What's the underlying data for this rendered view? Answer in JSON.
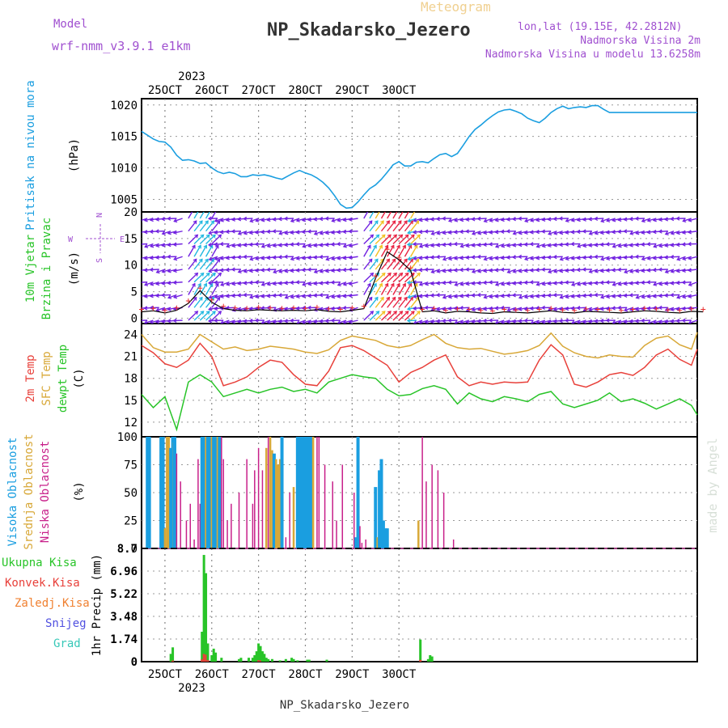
{
  "header": {
    "model_label": "Model",
    "model_name": "wrf-nmm_v3.9.1 e1km",
    "chart_kind": "Meteogram",
    "station": "NP_Skadarsko_Jezero",
    "lonlat": "lon,lat (19.15E, 42.2812N)",
    "elevation": "Nadmorska Visina 2m",
    "model_elevation": "Nadmorska Visina u modelu 13.6258m",
    "watermark": "made by Angel",
    "footer": "NP_Skadarsko_Jezero"
  },
  "colors": {
    "pressure": "#1a9ee0",
    "temp2m": "#e8403a",
    "sfc_temp": "#d8a838",
    "dewpt": "#28c428",
    "high_cloud": "#1a9ee0",
    "mid_cloud": "#d8a838",
    "low_cloud": "#c8208a",
    "total_precip": "#28c428",
    "convective": "#e8403a",
    "frozen": "#f08030",
    "snow": "#5050e0",
    "graupel": "#38c8b8",
    "wind_speed": "#000000",
    "model_purple": "#a050d0"
  },
  "chart_data": [
    {
      "type": "line",
      "panel": "pressure",
      "ylabel": "Pritisak na nivou mora",
      "unit": "(hPa)",
      "ylim": [
        1003,
        1021
      ],
      "yticks": [
        "1005",
        "1010",
        "1015",
        "1020"
      ],
      "x_hours": [
        0,
        3,
        6,
        9,
        12,
        15,
        18,
        21,
        24,
        27,
        30,
        33,
        36,
        39,
        42,
        45,
        48,
        51,
        54,
        57,
        60,
        63,
        66,
        69,
        72,
        75,
        78,
        81,
        84,
        87,
        90,
        93,
        96,
        99,
        102,
        105,
        108,
        111,
        114,
        117,
        120,
        123,
        126,
        129,
        132,
        135,
        138,
        141,
        144,
        147,
        150,
        153,
        156,
        159,
        162,
        165,
        168,
        171,
        174,
        177,
        180,
        183,
        186,
        189,
        192,
        195,
        198,
        201,
        204,
        207,
        210,
        213,
        216,
        219,
        222,
        225,
        228,
        231,
        234,
        237,
        240,
        243,
        246,
        249,
        252,
        255,
        258,
        261,
        264,
        267,
        270,
        273,
        276,
        279,
        282,
        285
      ],
      "values": [
        1015.8,
        1015.2,
        1014.6,
        1014.2,
        1014.1,
        1013.3,
        1012.0,
        1011.2,
        1011.3,
        1011.1,
        1010.7,
        1010.8,
        1010.0,
        1009.4,
        1009.1,
        1009.3,
        1009.1,
        1008.6,
        1008.6,
        1008.9,
        1008.8,
        1008.9,
        1008.7,
        1008.4,
        1008.2,
        1008.7,
        1009.2,
        1009.6,
        1009.2,
        1008.9,
        1008.4,
        1007.7,
        1006.8,
        1005.6,
        1004.2,
        1003.6,
        1003.7,
        1004.6,
        1005.7,
        1006.7,
        1007.3,
        1008.2,
        1009.3,
        1010.5,
        1011.0,
        1010.3,
        1010.3,
        1010.9,
        1011.0,
        1010.8,
        1011.5,
        1012.1,
        1012.3,
        1011.8,
        1012.3,
        1013.6,
        1015.0,
        1016.1,
        1016.8,
        1017.6,
        1018.3,
        1018.9,
        1019.2,
        1019.3,
        1019.0,
        1018.6,
        1017.9,
        1017.5,
        1017.2,
        1017.9,
        1018.8,
        1019.4,
        1019.8,
        1019.4,
        1019.6,
        1019.7,
        1019.6,
        1019.9,
        1019.9,
        1019.3,
        1018.8,
        1018.8,
        1018.8,
        1018.8,
        1018.8,
        1018.8,
        1018.8,
        1018.8,
        1018.8,
        1018.8,
        1018.8,
        1018.8,
        1018.8,
        1018.8,
        1018.8,
        1018.8
      ]
    },
    {
      "type": "line",
      "panel": "wind",
      "ylabel": "10m Vjetar",
      "ylabel2": "Brzina i Pravac",
      "unit": "(m/s)",
      "ylim": [
        -1,
        20
      ],
      "yticks": [
        "0",
        "5",
        "10",
        "15",
        "20"
      ],
      "compass": {
        "w": "W",
        "e": "E",
        "n": "N",
        "s": "S"
      },
      "x_hours": [
        0,
        6,
        12,
        18,
        24,
        30,
        36,
        42,
        48,
        54,
        60,
        66,
        72,
        78,
        84,
        90,
        96,
        102,
        108,
        114,
        120,
        126,
        132,
        138,
        144,
        150,
        156,
        162,
        168,
        174,
        180,
        186,
        192,
        198,
        204,
        210,
        216,
        222,
        228,
        234,
        240,
        246,
        252,
        258,
        264,
        270,
        276,
        282,
        288
      ],
      "values": [
        1.2,
        1.4,
        1.0,
        1.5,
        2.8,
        5.2,
        3.0,
        1.8,
        1.5,
        1.4,
        1.6,
        1.5,
        1.4,
        1.5,
        1.4,
        1.6,
        1.3,
        1.2,
        1.5,
        1.8,
        7.5,
        12.5,
        11.0,
        9.0,
        1.2,
        1.4,
        1.0,
        1.3,
        1.2,
        1.0,
        0.9,
        1.2,
        1.1,
        1.0,
        1.2,
        1.4,
        1.1,
        1.0,
        1.3,
        1.2,
        1.1,
        1.0,
        1.2,
        1.4,
        1.3,
        1.1,
        1.0,
        1.3,
        1.2
      ]
    },
    {
      "type": "line",
      "panel": "temperature",
      "ylabel": "2m Temp",
      "ylabel2": "SFC Temp",
      "ylabel3": "dewpt Temp",
      "unit": "(C)",
      "ylim": [
        10,
        25.5
      ],
      "yticks": [
        "12",
        "15",
        "18",
        "21",
        "24"
      ],
      "series": [
        {
          "name": "2m Temp",
          "x_hours": [
            0,
            6,
            12,
            18,
            24,
            30,
            36,
            42,
            48,
            54,
            60,
            66,
            72,
            78,
            84,
            90,
            96,
            102,
            108,
            114,
            120,
            126,
            132,
            138,
            144,
            150,
            156,
            162,
            168,
            174,
            180,
            186,
            192,
            198,
            204,
            210,
            216,
            222,
            228,
            234,
            240,
            246,
            252,
            258,
            264,
            270,
            276,
            282,
            285
          ],
          "values": [
            22.5,
            21.5,
            20.0,
            19.5,
            20.5,
            22.8,
            21.0,
            17.0,
            17.5,
            18.2,
            19.5,
            20.5,
            20.2,
            18.5,
            17.2,
            17.0,
            19.0,
            22.2,
            22.5,
            21.8,
            20.8,
            19.8,
            17.5,
            18.8,
            19.5,
            20.5,
            21.2,
            18.2,
            17.0,
            17.5,
            17.2,
            17.5,
            17.4,
            17.5,
            20.5,
            22.6,
            21.2,
            17.2,
            16.8,
            17.5,
            18.5,
            18.8,
            18.4,
            19.5,
            21.2,
            22.0,
            20.6,
            19.8,
            22.0
          ]
        },
        {
          "name": "SFC Temp",
          "x_hours": [
            0,
            6,
            12,
            18,
            24,
            30,
            36,
            42,
            48,
            54,
            60,
            66,
            72,
            78,
            84,
            90,
            96,
            102,
            108,
            114,
            120,
            126,
            132,
            138,
            144,
            150,
            156,
            162,
            168,
            174,
            180,
            186,
            192,
            198,
            204,
            210,
            216,
            222,
            228,
            234,
            240,
            246,
            252,
            258,
            264,
            270,
            276,
            282,
            285
          ],
          "values": [
            24.0,
            22.2,
            21.6,
            21.6,
            22.0,
            24.0,
            23.0,
            22.0,
            22.3,
            21.8,
            22.0,
            22.4,
            22.2,
            22.0,
            21.6,
            21.4,
            21.9,
            23.2,
            23.8,
            23.5,
            23.2,
            22.5,
            22.2,
            22.5,
            23.3,
            24.0,
            22.8,
            22.2,
            22.0,
            22.1,
            21.7,
            21.3,
            21.5,
            21.8,
            22.5,
            24.2,
            22.4,
            21.5,
            21.0,
            20.8,
            21.2,
            21.0,
            20.9,
            22.5,
            23.5,
            23.8,
            22.6,
            22.0,
            24.3
          ]
        },
        {
          "name": "dewpt Temp",
          "x_hours": [
            0,
            6,
            12,
            18,
            24,
            30,
            36,
            42,
            48,
            54,
            60,
            66,
            72,
            78,
            84,
            90,
            96,
            102,
            108,
            114,
            120,
            126,
            132,
            138,
            144,
            150,
            156,
            162,
            168,
            174,
            180,
            186,
            192,
            198,
            204,
            210,
            216,
            222,
            228,
            234,
            240,
            246,
            252,
            258,
            264,
            270,
            276,
            282,
            285
          ],
          "values": [
            15.8,
            14.0,
            15.5,
            11.0,
            17.5,
            18.5,
            17.5,
            15.5,
            16.0,
            16.5,
            16.0,
            16.5,
            16.8,
            16.2,
            16.5,
            16.0,
            17.5,
            18.0,
            18.5,
            18.2,
            18.0,
            16.5,
            15.6,
            15.8,
            16.6,
            17.0,
            16.5,
            14.5,
            16.0,
            15.2,
            14.8,
            15.5,
            15.2,
            14.8,
            15.8,
            16.2,
            14.5,
            14.0,
            14.5,
            15.0,
            16.0,
            14.8,
            15.2,
            14.6,
            13.8,
            14.5,
            15.2,
            14.3,
            13.0
          ]
        }
      ]
    },
    {
      "type": "bar",
      "panel": "clouds",
      "ylabel": "Visoka Oblacnost",
      "ylabel2": "Srednja Oblacnost",
      "ylabel3": "Niska Oblacnost",
      "unit": "(%)",
      "ylim": [
        0,
        100
      ],
      "yticks": [
        "0",
        "25",
        "50",
        "75",
        "100"
      ],
      "bars": [
        [
          3,
          100,
          "high"
        ],
        [
          4,
          100,
          "high"
        ],
        [
          10,
          100,
          "high"
        ],
        [
          11,
          100,
          "high"
        ],
        [
          12,
          18,
          "mid"
        ],
        [
          13,
          100,
          "mid"
        ],
        [
          14,
          100,
          "mid"
        ],
        [
          15,
          90,
          "high"
        ],
        [
          16,
          100,
          "high"
        ],
        [
          16.6,
          95,
          "mid"
        ],
        [
          17,
          100,
          "high"
        ],
        [
          18,
          85,
          "low"
        ],
        [
          20,
          60,
          "low"
        ],
        [
          23,
          25,
          "low"
        ],
        [
          25,
          40,
          "low"
        ],
        [
          27,
          8,
          "low"
        ],
        [
          29,
          80,
          "low"
        ],
        [
          30,
          40,
          "low"
        ],
        [
          31,
          100,
          "high"
        ],
        [
          32,
          100,
          "high"
        ],
        [
          33,
          100,
          "mid"
        ],
        [
          34,
          100,
          "high"
        ],
        [
          35,
          100,
          "high"
        ],
        [
          36,
          100,
          "mid"
        ],
        [
          37,
          100,
          "high"
        ],
        [
          38,
          100,
          "high"
        ],
        [
          39,
          100,
          "mid"
        ],
        [
          40,
          100,
          "high"
        ],
        [
          41,
          100,
          "low"
        ],
        [
          42,
          80,
          "low"
        ],
        [
          44,
          25,
          "low"
        ],
        [
          46,
          40,
          "low"
        ],
        [
          50,
          50,
          "low"
        ],
        [
          54,
          80,
          "low"
        ],
        [
          57,
          40,
          "low"
        ],
        [
          58,
          70,
          "low"
        ],
        [
          60,
          90,
          "low"
        ],
        [
          62,
          70,
          "low"
        ],
        [
          64,
          90,
          "mid"
        ],
        [
          65,
          100,
          "low"
        ],
        [
          66,
          100,
          "mid"
        ],
        [
          67,
          88,
          "mid"
        ],
        [
          68,
          85,
          "high"
        ],
        [
          69,
          80,
          "mid"
        ],
        [
          70,
          75,
          "mid"
        ],
        [
          71,
          80,
          "mid"
        ],
        [
          72,
          100,
          "high"
        ],
        [
          74,
          10,
          "low"
        ],
        [
          76,
          50,
          "low"
        ],
        [
          78,
          55,
          "mid"
        ],
        [
          80,
          100,
          "high"
        ],
        [
          81,
          100,
          "high"
        ],
        [
          82,
          100,
          "high"
        ],
        [
          83,
          100,
          "high"
        ],
        [
          84,
          100,
          "high"
        ],
        [
          85,
          100,
          "high"
        ],
        [
          86,
          100,
          "high"
        ],
        [
          87,
          100,
          "high"
        ],
        [
          88,
          100,
          "mid"
        ],
        [
          90,
          100,
          "low"
        ],
        [
          91,
          100,
          "low"
        ],
        [
          94,
          75,
          "low"
        ],
        [
          98,
          60,
          "low"
        ],
        [
          100,
          25,
          "low"
        ],
        [
          103,
          75,
          "low"
        ],
        [
          109,
          50,
          "low"
        ],
        [
          110,
          10,
          "high"
        ],
        [
          111,
          100,
          "high"
        ],
        [
          112,
          20,
          "low"
        ],
        [
          113,
          5,
          "low"
        ],
        [
          115,
          8,
          "low"
        ],
        [
          120,
          55,
          "high"
        ],
        [
          121,
          10,
          "mid"
        ],
        [
          122,
          70,
          "high"
        ],
        [
          123,
          80,
          "high"
        ],
        [
          124,
          25,
          "high"
        ],
        [
          125,
          18,
          "high"
        ],
        [
          126,
          18,
          "high"
        ],
        [
          142,
          25,
          "mid"
        ],
        [
          144,
          100,
          "low"
        ],
        [
          146,
          60,
          "low"
        ],
        [
          149,
          75,
          "low"
        ],
        [
          152,
          70,
          "low"
        ],
        [
          155,
          50,
          "low"
        ],
        [
          160,
          8,
          "low"
        ]
      ]
    },
    {
      "type": "bar",
      "panel": "precipitation",
      "ylabel": "1hr Precip (mm)",
      "legend": [
        "Ukupna Kisa",
        "Konvek.Kisa",
        "Zaledj.Kisa",
        "Snijeg",
        "Grad"
      ],
      "ylim": [
        0,
        8.7
      ],
      "yticks": [
        "0",
        "1.74",
        "3.48",
        "5.22",
        "6.96",
        "8.7"
      ],
      "bars": [
        [
          15,
          0.6
        ],
        [
          16,
          1.1
        ],
        [
          31,
          2.3
        ],
        [
          32,
          8.2
        ],
        [
          33,
          6.8
        ],
        [
          34,
          1.4
        ],
        [
          36,
          0.5
        ],
        [
          37,
          1.0
        ],
        [
          38,
          0.7
        ],
        [
          41,
          0.3
        ],
        [
          50,
          0.2
        ],
        [
          51,
          0.3
        ],
        [
          55,
          0.3
        ],
        [
          57,
          0.3
        ],
        [
          58,
          0.5
        ],
        [
          59,
          0.8
        ],
        [
          60,
          1.4
        ],
        [
          61,
          1.2
        ],
        [
          62,
          0.8
        ],
        [
          63,
          0.6
        ],
        [
          64,
          0.3
        ],
        [
          65,
          0.2
        ],
        [
          67,
          0.2
        ],
        [
          71,
          0.1
        ],
        [
          74,
          0.2
        ],
        [
          77,
          0.3
        ],
        [
          78,
          0.2
        ],
        [
          80,
          0.1
        ],
        [
          85,
          0.15
        ],
        [
          86,
          0.15
        ],
        [
          95,
          0.15
        ],
        [
          143,
          1.7
        ],
        [
          147,
          0.2
        ],
        [
          148,
          0.5
        ],
        [
          149,
          0.4
        ]
      ]
    }
  ],
  "x_axis": {
    "start_hour": 0,
    "end_hour": 285,
    "labels": [
      {
        "hour": 12,
        "text": "25OCT"
      },
      {
        "hour": 36,
        "text": "26OCT"
      },
      {
        "hour": 60,
        "text": "27OCT"
      },
      {
        "hour": 84,
        "text": "28OCT"
      },
      {
        "hour": 108,
        "text": "29OCT"
      },
      {
        "hour": 132,
        "text": "30OCT"
      }
    ],
    "year": "2023"
  }
}
